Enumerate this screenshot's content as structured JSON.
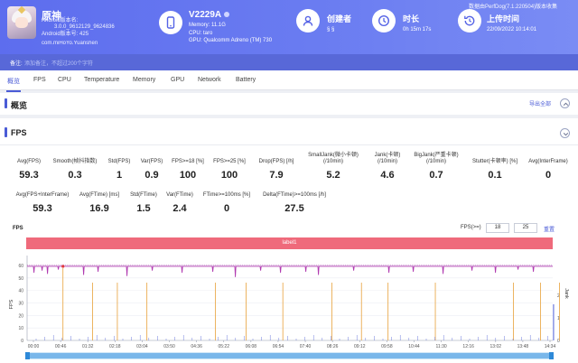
{
  "app": {
    "name": "原神",
    "meta_line1": "Android版本名:",
    "meta_line2": "3.0.0_9612129_9624836",
    "meta_line3": "Android版本号: 425",
    "package": "com.miHoYo.Yuanshen"
  },
  "device": {
    "name": "V2229A",
    "memory": "Memory: 11.1G",
    "cpu": "CPU: taro",
    "gpu": "GPU: Qualcomm Adreno (TM) 730"
  },
  "creator": {
    "title": "创建者",
    "value": "§ §"
  },
  "duration": {
    "title": "时长",
    "value": "0h 15m 17s"
  },
  "upload": {
    "title": "上传时间",
    "value": "22/09/2022 10:14:01",
    "version_note": "数据由PerfDog(7.1.220504)版本收集"
  },
  "notes": {
    "label": "备注:",
    "placeholder": "添加备注，不超过200个字符"
  },
  "tabs": [
    "概览",
    "FPS",
    "CPU",
    "Temperature",
    "Memory",
    "GPU",
    "Network",
    "Battery"
  ],
  "overview": {
    "title": "概览",
    "export_label": "导出全部"
  },
  "fps_section": {
    "title": "FPS",
    "metrics_row1": [
      {
        "label": "Avg(FPS)",
        "value": "59.3"
      },
      {
        "label": "Smooth(帧抖指数)",
        "value": "0.3"
      },
      {
        "label": "Std(FPS)",
        "value": "1"
      },
      {
        "label": "Var(FPS)",
        "value": "0.9"
      },
      {
        "label": "FPS>=18 [%]",
        "value": "100"
      },
      {
        "label": "FPS>=25 [%]",
        "value": "100"
      },
      {
        "label": "Drop(FPS) [/h]",
        "value": "7.9"
      },
      {
        "label": "SmallJank(微小卡顿)",
        "label2": "(/10min)",
        "value": "5.2"
      },
      {
        "label": "Jank(卡顿)",
        "label2": "(/10min)",
        "value": "4.6"
      },
      {
        "label": "BigJank(严重卡顿)",
        "label2": "(/10min)",
        "value": "0.7"
      },
      {
        "label": "Stutter(卡顿率) [%]",
        "value": "0.1"
      },
      {
        "label": "Avg(InterFrame)",
        "value": "0"
      }
    ],
    "metrics_row2": [
      {
        "label": "Avg(FPS+InterFrame)",
        "value": "59.3"
      },
      {
        "label": "Avg(FTime) [ms]",
        "value": "16.9"
      },
      {
        "label": "Std(FTime)",
        "value": "1.5"
      },
      {
        "label": "Var(FTime)",
        "value": "2.4"
      },
      {
        "label": "FTime>=100ms [%]",
        "value": "0"
      },
      {
        "label": "Delta(FTime)>=100ms [/h]",
        "value": "27.5"
      }
    ]
  },
  "chart_controls": {
    "title": "FPS",
    "fps_threshold_label": "FPS(>=)",
    "threshold_a": "18",
    "threshold_b": "25",
    "reset_label": "重置",
    "label_band": "label1"
  },
  "chart_data": {
    "type": "line",
    "ylabel": "FPS",
    "y2label": "Jank",
    "yticks": [
      0,
      10,
      20,
      30,
      40,
      50,
      60
    ],
    "y2ticks": [
      0,
      1,
      2
    ],
    "ylim": [
      0,
      65
    ],
    "x_ticks": [
      "00:00",
      "00:46",
      "01:32",
      "02:18",
      "03:04",
      "03:50",
      "04:36",
      "05:22",
      "06:08",
      "06:54",
      "07:40",
      "08:26",
      "09:12",
      "09:58",
      "10:44",
      "11:30",
      "12:16",
      "13:02",
      "13:48",
      "14:34"
    ],
    "series": [
      {
        "name": "FPS",
        "color": "#b03ab0",
        "value": 59.3
      },
      {
        "name": "Jank",
        "color": "#e8a13a",
        "spike_times": [
          "00:50",
          "01:40",
          "02:22",
          "03:12",
          "05:08",
          "06:00",
          "07:02",
          "08:25",
          "09:15",
          "10:00",
          "11:20",
          "13:32",
          "14:18",
          "14:50"
        ]
      },
      {
        "name": "BigJank",
        "color": "#e03a3a"
      },
      {
        "name": "Stutter",
        "color": "#4a5bd6"
      }
    ]
  },
  "colors": {
    "accent": "#4a5bd6",
    "header": "#6270ef",
    "band": "#ef6a7b"
  }
}
